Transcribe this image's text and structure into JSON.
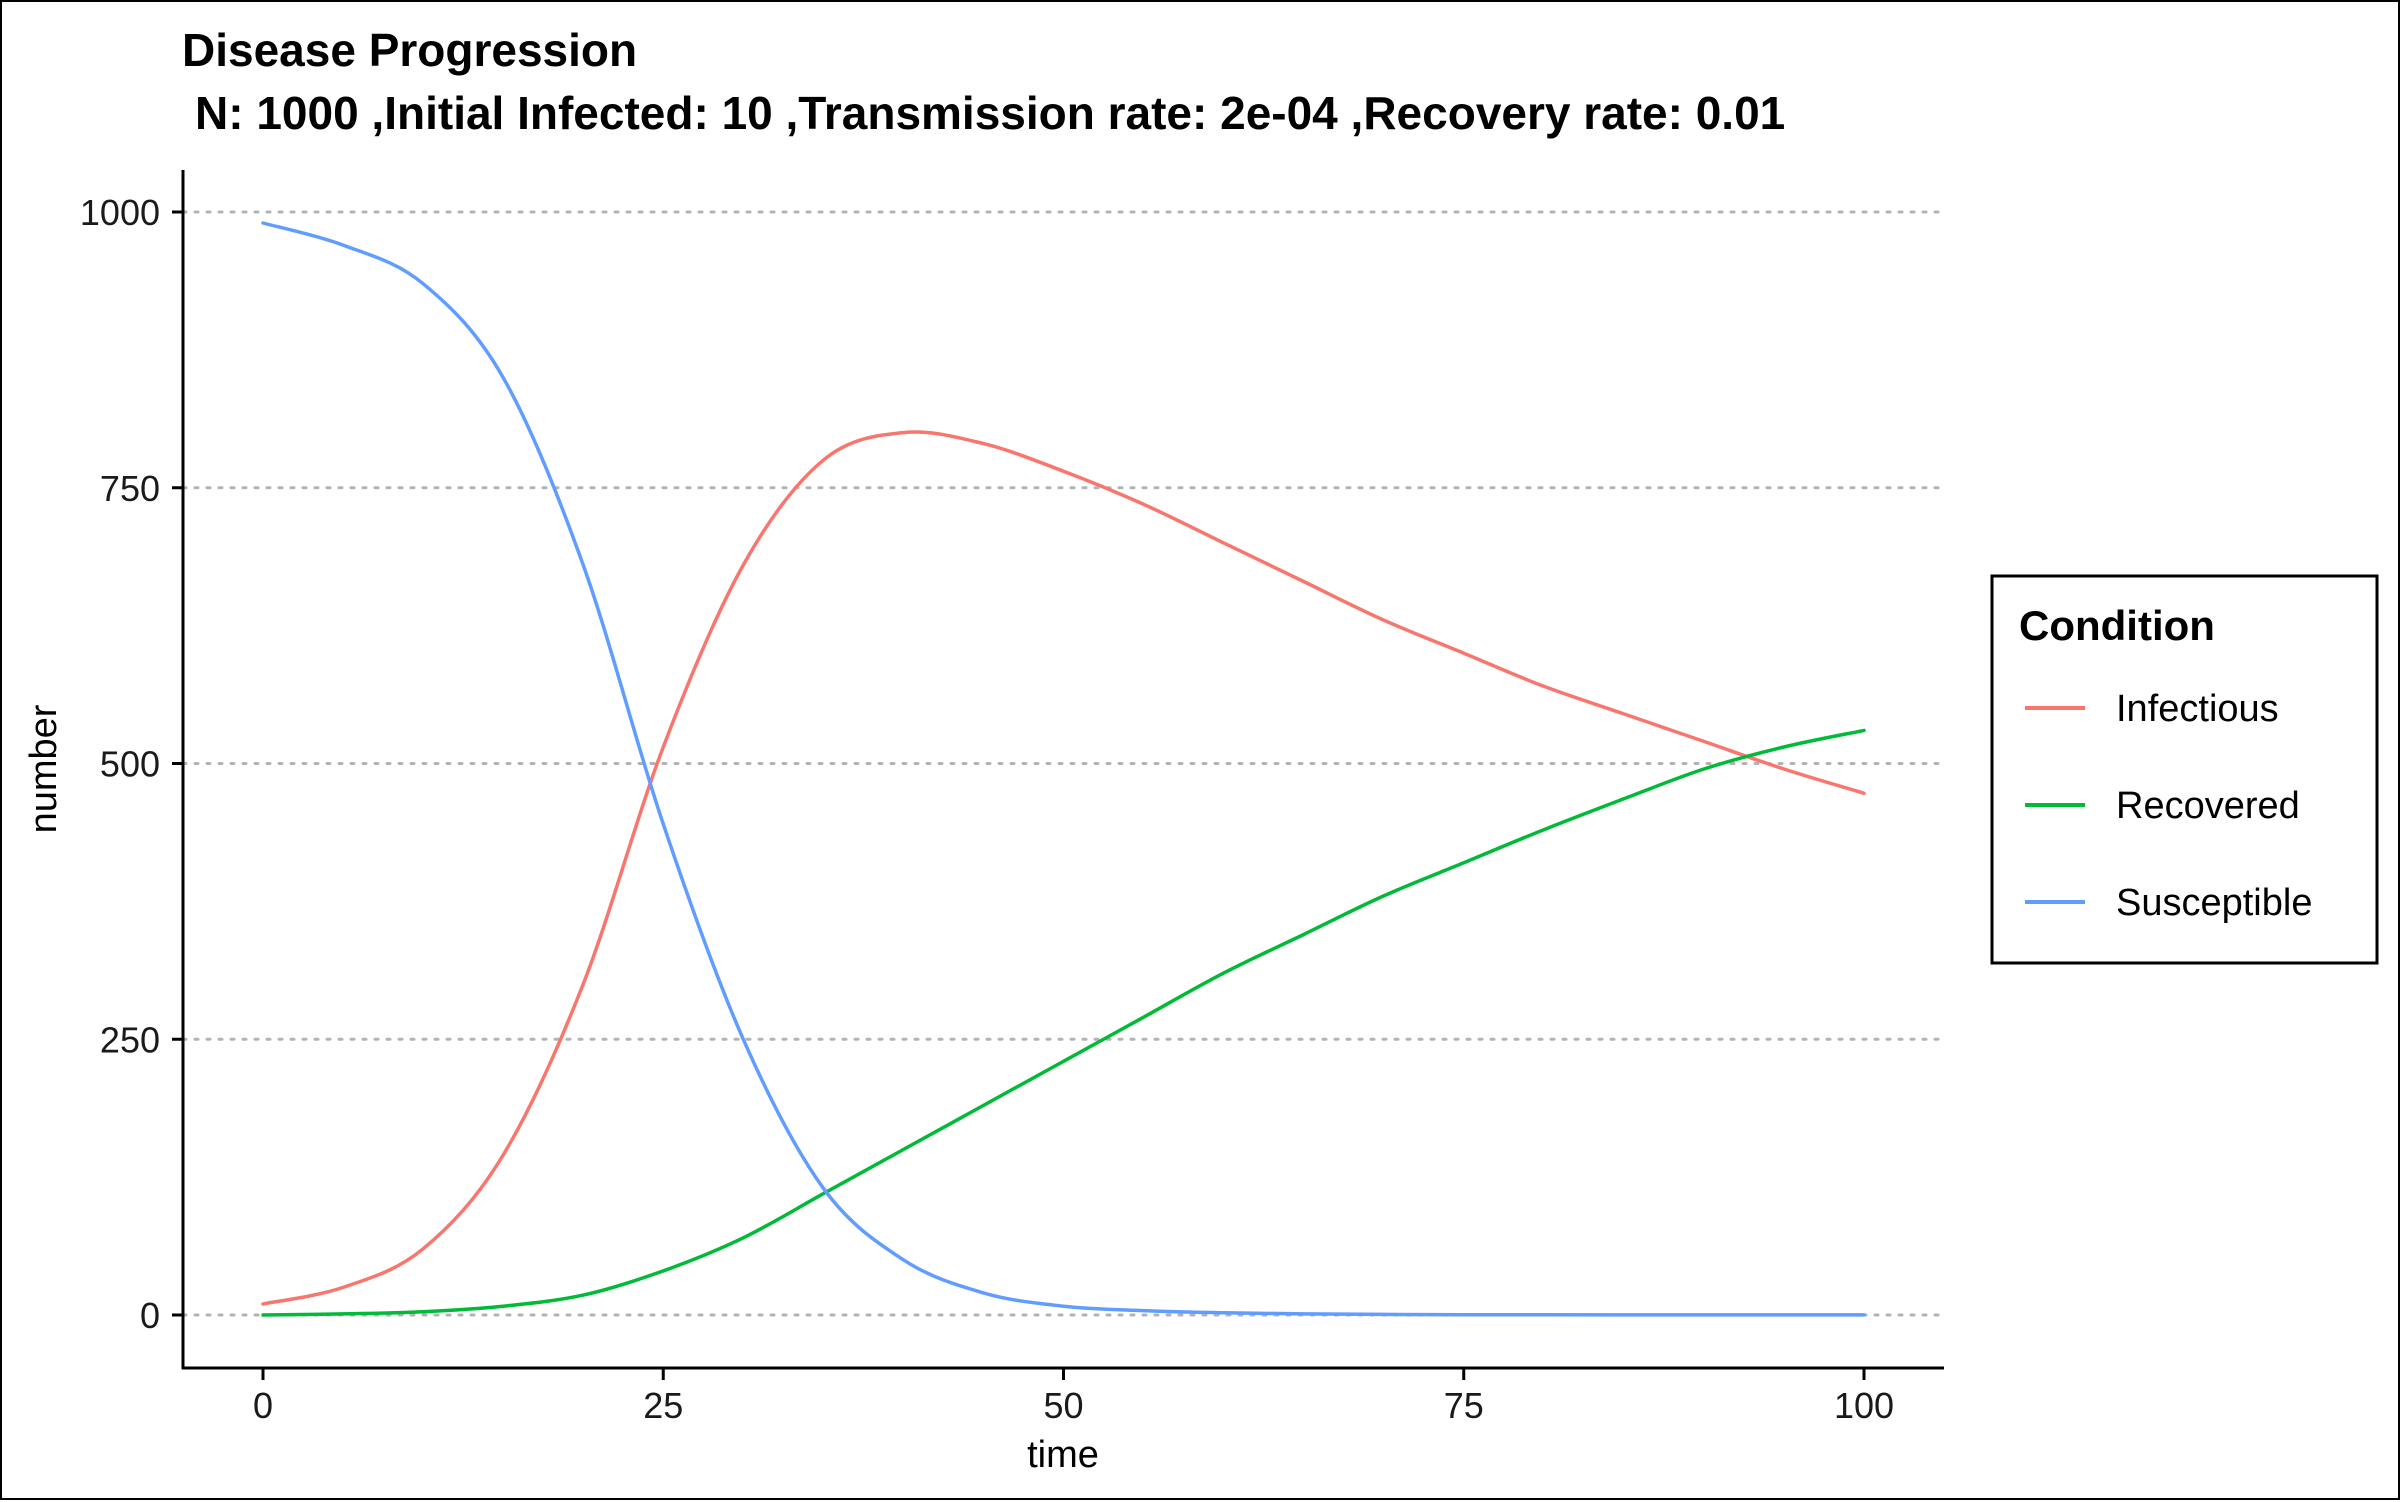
{
  "chart_data": {
    "type": "line",
    "title": "Disease Progression",
    "subtitle": "N: 1000 ,Initial Infected: 10 ,Transmission rate: 2e-04 ,Recovery rate: 0.01",
    "xlabel": "time",
    "ylabel": "number",
    "xlim": [
      0,
      100
    ],
    "ylim": [
      0,
      1000
    ],
    "x_ticks": [
      0,
      25,
      50,
      75,
      100
    ],
    "y_ticks": [
      0,
      250,
      500,
      750,
      1000
    ],
    "grid": "horizontal-dotted",
    "legend": {
      "title": "Condition",
      "placement": "right"
    },
    "x": [
      0,
      5,
      10,
      15,
      20,
      25,
      30,
      35,
      40,
      45,
      50,
      55,
      60,
      65,
      70,
      75,
      80,
      85,
      90,
      95,
      100
    ],
    "series": [
      {
        "name": "Infectious",
        "color": "#F8766D",
        "values": [
          10,
          25,
          60,
          145,
          300,
          515,
          680,
          775,
          800,
          790,
          765,
          735,
          700,
          665,
          630,
          600,
          570,
          545,
          520,
          495,
          473
        ]
      },
      {
        "name": "Recovered",
        "color": "#00BA38",
        "values": [
          0,
          1,
          3,
          8,
          18,
          40,
          70,
          110,
          150,
          190,
          230,
          270,
          310,
          345,
          380,
          410,
          440,
          468,
          495,
          515,
          530
        ]
      },
      {
        "name": "Susceptible",
        "color": "#619CFF",
        "values": [
          990,
          970,
          935,
          850,
          680,
          445,
          250,
          115,
          50,
          20,
          8,
          4,
          2,
          1,
          0.5,
          0.3,
          0.2,
          0.1,
          0.1,
          0.1,
          0.1
        ]
      }
    ]
  }
}
